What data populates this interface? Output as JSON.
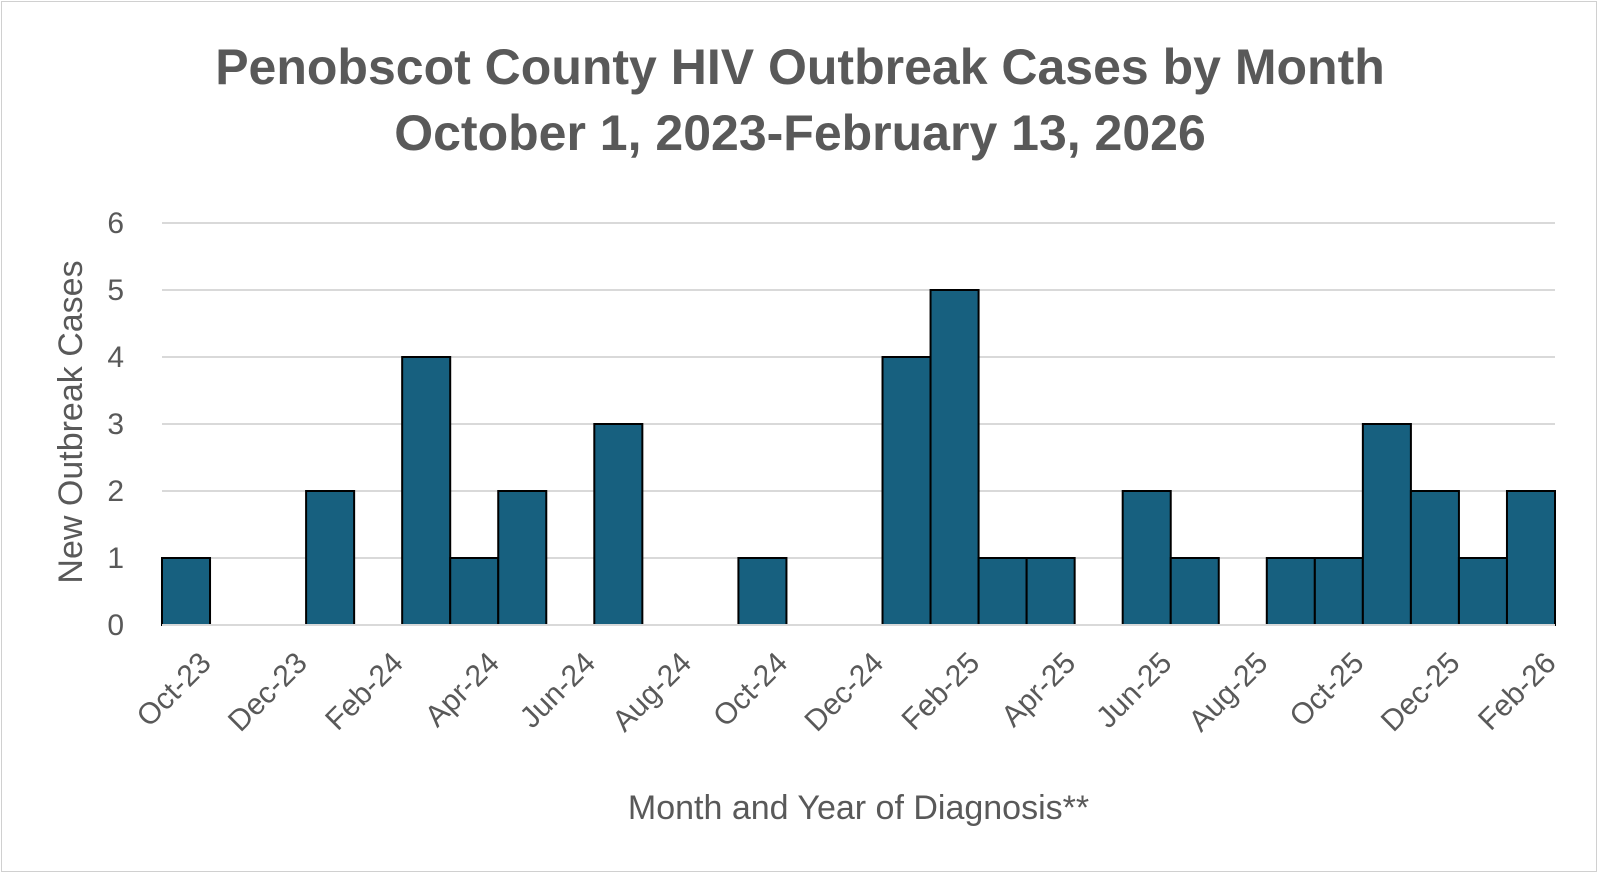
{
  "chart_data": {
    "type": "bar",
    "title": [
      "Penobscot County HIV Outbreak Cases by Month",
      "October 1, 2023-February 13, 2026"
    ],
    "xlabel": "Month and Year of Diagnosis**",
    "ylabel": "New Outbreak Cases",
    "ylim": [
      0,
      6
    ],
    "yticks": [
      0,
      1,
      2,
      3,
      4,
      5,
      6
    ],
    "grid": true,
    "legend": "none",
    "bar_color": "#17607f",
    "categories": [
      "Oct-23",
      "Nov-23",
      "Dec-23",
      "Jan-24",
      "Feb-24",
      "Mar-24",
      "Apr-24",
      "May-24",
      "Jun-24",
      "Jul-24",
      "Aug-24",
      "Sep-24",
      "Oct-24",
      "Nov-24",
      "Dec-24",
      "Jan-25",
      "Feb-25",
      "Mar-25",
      "Apr-25",
      "May-25",
      "Jun-25",
      "Jul-25",
      "Aug-25",
      "Sep-25",
      "Oct-25",
      "Nov-25",
      "Dec-25",
      "Jan-26",
      "Feb-26"
    ],
    "tick_labels": [
      "Oct-23",
      "Dec-23",
      "Feb-24",
      "Apr-24",
      "Jun-24",
      "Aug-24",
      "Oct-24",
      "Dec-24",
      "Feb-25",
      "Apr-25",
      "Jun-25",
      "Aug-25",
      "Oct-25",
      "Dec-25",
      "Feb-26"
    ],
    "values": [
      1,
      0,
      0,
      2,
      0,
      4,
      1,
      2,
      0,
      3,
      0,
      0,
      1,
      0,
      0,
      4,
      5,
      1,
      1,
      0,
      2,
      1,
      0,
      1,
      1,
      3,
      2,
      1,
      2
    ]
  }
}
